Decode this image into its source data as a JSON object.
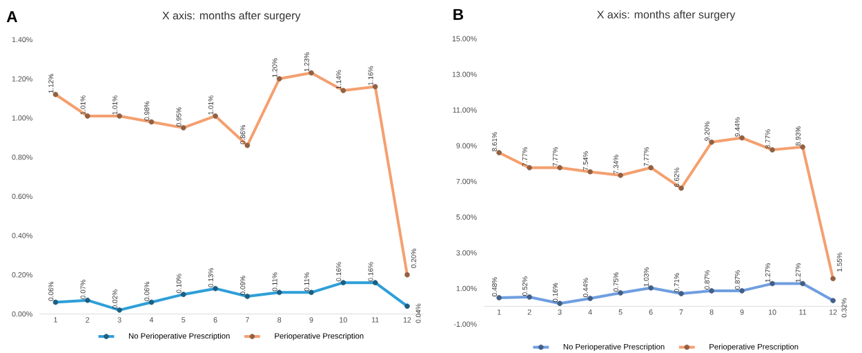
{
  "chart_data": [
    {
      "type": "line",
      "title": "X axis: months after surgery",
      "annotations": [
        "A"
      ],
      "categories": [
        "1",
        "2",
        "3",
        "4",
        "5",
        "6",
        "7",
        "8",
        "9",
        "10",
        "11",
        "12"
      ],
      "ylim": [
        0,
        1.4
      ],
      "yticks": [
        {
          "value": 0,
          "label": "0.00%"
        },
        {
          "value": 0.2,
          "label": "0.20%"
        },
        {
          "value": 0.4,
          "label": "0.40%"
        },
        {
          "value": 0.6,
          "label": "0.60%"
        },
        {
          "value": 0.8,
          "label": "0.80%"
        },
        {
          "value": 1.0,
          "label": "1.00%"
        },
        {
          "value": 1.2,
          "label": "1.20%"
        },
        {
          "value": 1.4,
          "label": "1.40%"
        }
      ],
      "legend": "bottom",
      "marker": "circle",
      "series": [
        {
          "name": "No Perioperative Prescription",
          "color": "#2e9fd8",
          "values": [
            0.06,
            0.07,
            0.02,
            0.06,
            0.1,
            0.13,
            0.09,
            0.11,
            0.11,
            0.16,
            0.16,
            0.04
          ],
          "value_labels": [
            "0.06%",
            "0.07%",
            "0.02%",
            "0.06%",
            "0.10%",
            "0.13%",
            "0.09%",
            "0.11%",
            "0.11%",
            "0.16%",
            "0.16%",
            "0.04%"
          ]
        },
        {
          "name": "Perioperative Prescription",
          "color": "#f4a070",
          "values": [
            1.12,
            1.01,
            1.01,
            0.98,
            0.95,
            1.01,
            0.86,
            1.2,
            1.23,
            1.14,
            1.16,
            0.2
          ],
          "value_labels": [
            "1.12%",
            "1.01%",
            "1.01%",
            "0.98%",
            "0.95%",
            "1.01%",
            "0.86%",
            "1.20%",
            "1.23%",
            "1.14%",
            "1.16%",
            "0.20%"
          ]
        }
      ]
    },
    {
      "type": "line",
      "title": "X axis: months after surgery",
      "annotations": [
        "B"
      ],
      "categories": [
        "1",
        "2",
        "3",
        "4",
        "5",
        "6",
        "7",
        "8",
        "9",
        "10",
        "11",
        "12"
      ],
      "ylim": [
        -1,
        15
      ],
      "yticks": [
        {
          "value": -1,
          "label": "-1.00%"
        },
        {
          "value": 1,
          "label": "1.00%"
        },
        {
          "value": 3,
          "label": "3.00%"
        },
        {
          "value": 5,
          "label": "5.00%"
        },
        {
          "value": 7,
          "label": "7.00%"
        },
        {
          "value": 9,
          "label": "9.00%"
        },
        {
          "value": 11,
          "label": "11.00%"
        },
        {
          "value": 13,
          "label": "13.00%"
        },
        {
          "value": 15,
          "label": "15.00%"
        }
      ],
      "legend": "bottom",
      "marker": "circle",
      "series": [
        {
          "name": "No Perioperative Prescription",
          "color": "#6f9ee0",
          "values": [
            0.48,
            0.52,
            0.16,
            0.44,
            0.75,
            1.03,
            0.71,
            0.87,
            0.87,
            1.27,
            1.27,
            0.32
          ],
          "value_labels": [
            "0.48%",
            "0.52%",
            "0.16%",
            "0.44%",
            "0.75%",
            "1.03%",
            "0.71%",
            "0.87%",
            "0.87%",
            "1.27%",
            "1.27%",
            "0.32%"
          ]
        },
        {
          "name": "Perioperative Prescription",
          "color": "#f4a070",
          "values": [
            8.61,
            7.77,
            7.77,
            7.54,
            7.34,
            7.77,
            6.62,
            9.2,
            9.44,
            8.77,
            8.93,
            1.55
          ],
          "value_labels": [
            "8.61%",
            "7.77%",
            "7.77%",
            "7.54%",
            "7.34%",
            "7.77%",
            "6.62%",
            "9.20%",
            "9.44%",
            "8.77%",
            "8.93%",
            "1.55%"
          ]
        }
      ]
    }
  ]
}
